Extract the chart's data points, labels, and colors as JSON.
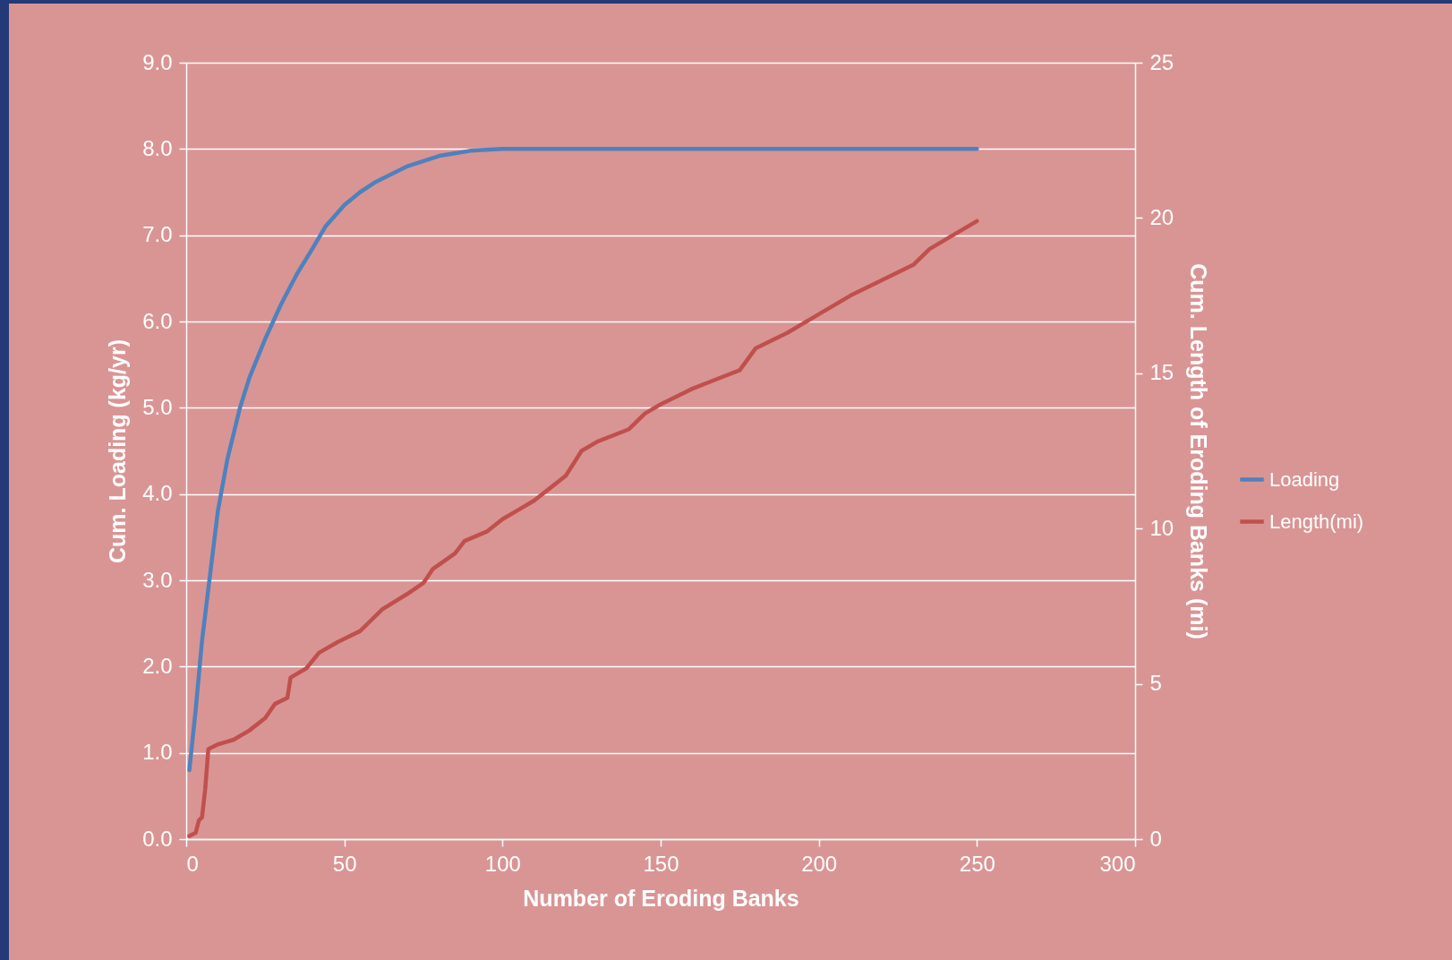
{
  "chart_data": {
    "type": "line",
    "xlabel": "Number of Eroding Banks",
    "ylabel": "Cum. Loading (kg/yr)",
    "y2label": "Cum. Length of Eroding Banks (mi)",
    "xlim": [
      0,
      300
    ],
    "xticks": [
      0,
      50,
      100,
      150,
      200,
      250,
      300
    ],
    "ylim": [
      0,
      9
    ],
    "yticks": [
      {
        "value": 0,
        "label": "0.0"
      },
      {
        "value": 1,
        "label": "1.0"
      },
      {
        "value": 2,
        "label": "2.0"
      },
      {
        "value": 3,
        "label": "3.0"
      },
      {
        "value": 4,
        "label": "4.0"
      },
      {
        "value": 5,
        "label": "5.0"
      },
      {
        "value": 6,
        "label": "6.0"
      },
      {
        "value": 7,
        "label": "7.0"
      },
      {
        "value": 8,
        "label": "8.0"
      },
      {
        "value": 9,
        "label": "9.0"
      }
    ],
    "y2lim": [
      0,
      25
    ],
    "y2ticks": [
      0,
      5,
      10,
      15,
      20,
      25
    ],
    "grid": "y",
    "legend": "right",
    "marker": "none",
    "line_style": "solid",
    "series": [
      {
        "name": "Loading",
        "color": "#4f81bd",
        "x": [
          1,
          3,
          5,
          8,
          10,
          13,
          17,
          20,
          25,
          30,
          35,
          40,
          44,
          50,
          55,
          60,
          70,
          80,
          90,
          100,
          150,
          200,
          250
        ],
        "values": [
          0.8,
          1.5,
          2.3,
          3.2,
          3.8,
          4.4,
          5.0,
          5.35,
          5.8,
          6.2,
          6.55,
          6.85,
          7.1,
          7.35,
          7.5,
          7.62,
          7.8,
          7.92,
          7.98,
          8.0,
          8.0,
          8.0,
          8.0
        ]
      },
      {
        "name": "Length(mi)",
        "color": "#c0504d",
        "axis": "y2",
        "x": [
          1,
          3,
          4,
          5,
          6,
          7,
          10,
          15,
          20,
          25,
          28,
          32,
          33,
          38,
          42,
          48,
          55,
          58,
          62,
          70,
          75,
          78,
          85,
          88,
          95,
          100,
          105,
          110,
          115,
          120,
          125,
          130,
          140,
          145,
          150,
          160,
          170,
          175,
          180,
          190,
          200,
          210,
          220,
          230,
          235,
          240,
          250
        ],
        "values": [
          0.1,
          0.2,
          0.6,
          0.7,
          1.6,
          2.9,
          3.05,
          3.2,
          3.5,
          3.9,
          4.35,
          4.55,
          5.2,
          5.5,
          6.0,
          6.35,
          6.7,
          7.0,
          7.4,
          7.9,
          8.25,
          8.7,
          9.2,
          9.6,
          9.9,
          10.3,
          10.6,
          10.9,
          11.3,
          11.7,
          12.5,
          12.8,
          13.2,
          13.7,
          14.0,
          14.5,
          14.9,
          15.1,
          15.8,
          16.3,
          16.9,
          17.5,
          18.0,
          18.5,
          19.0,
          19.3,
          19.9
        ]
      }
    ]
  }
}
